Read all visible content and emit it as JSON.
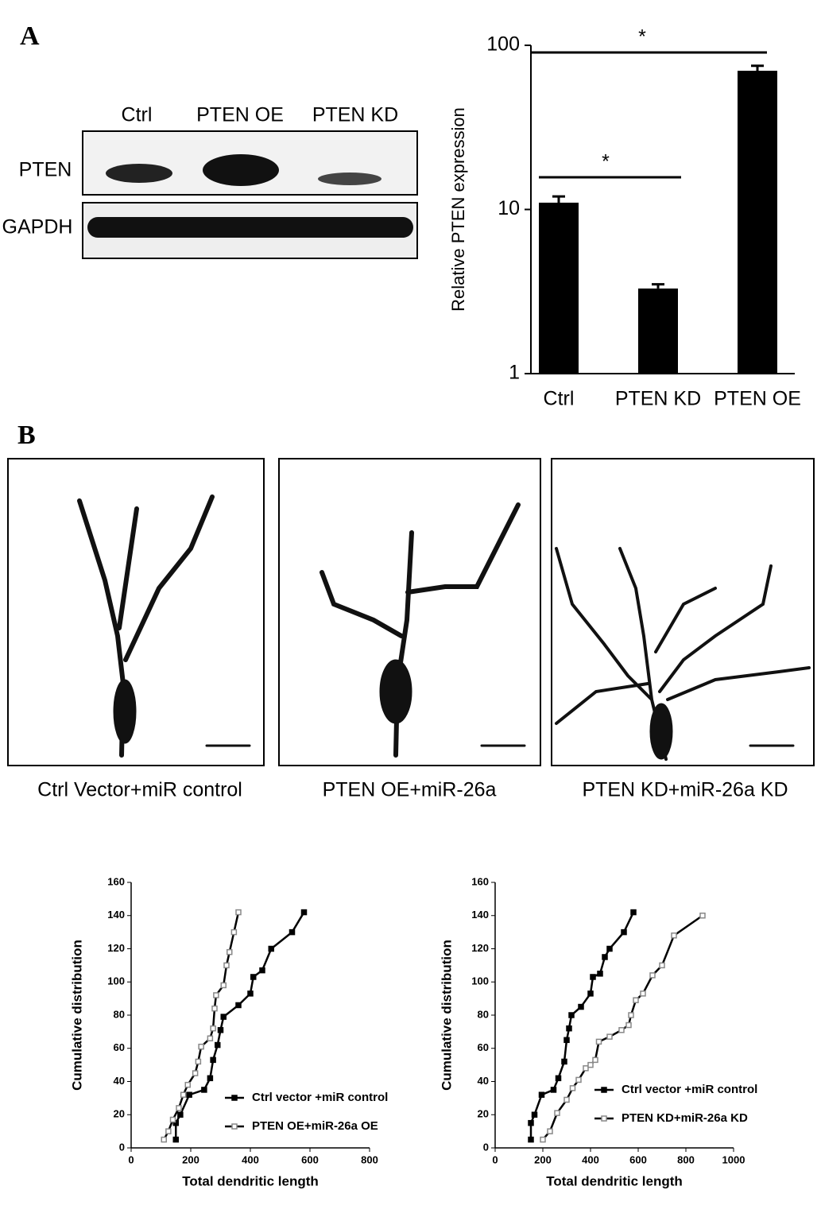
{
  "figure": {
    "panel_a": "A",
    "panel_b": "B",
    "blot": {
      "lanes": [
        "Ctrl",
        "PTEN OE",
        "PTEN KD"
      ],
      "rows": [
        "PTEN",
        "GAPDH"
      ]
    },
    "captions": [
      "Ctrl Vector+miR control",
      "PTEN OE+miR-26a",
      "PTEN KD+miR-26a KD"
    ]
  },
  "chart_data": [
    {
      "type": "bar",
      "y_label": "Relative PTEN expression",
      "categories": [
        "Ctrl",
        "PTEN KD",
        "PTEN OE"
      ],
      "values": [
        11,
        3.3,
        70
      ],
      "errors": [
        1,
        0.2,
        5
      ],
      "color": "#000000",
      "ylim": [
        1,
        100
      ],
      "yticks": [
        1,
        10,
        100
      ],
      "log_y": true,
      "annotations": [
        "*",
        "*"
      ]
    },
    {
      "type": "line",
      "x_label": "Total dendritic length",
      "y_label": "Cumulative distribution",
      "xlim": [
        0,
        800
      ],
      "xticks": [
        0,
        200,
        400,
        600,
        800
      ],
      "ylim": [
        0,
        160
      ],
      "yticks": [
        0,
        20,
        40,
        60,
        80,
        100,
        120,
        140,
        160
      ],
      "legend": "lower right",
      "series": [
        {
          "name": "Ctrl vector +miR control",
          "color": "#000000",
          "marker": "filled",
          "x": [
            150,
            150,
            165,
            195,
            245,
            265,
            275,
            290,
            300,
            310,
            360,
            400,
            410,
            440,
            470,
            540,
            580
          ],
          "values": [
            5,
            15,
            20,
            32,
            35,
            42,
            53,
            62,
            71,
            79,
            86,
            93,
            103,
            107,
            120,
            130,
            142
          ]
        },
        {
          "name": "PTEN OE+miR-26a OE",
          "color": "#888888",
          "marker": "open",
          "x": [
            110,
            125,
            140,
            160,
            175,
            190,
            215,
            225,
            235,
            265,
            275,
            280,
            285,
            310,
            320,
            330,
            345,
            360
          ],
          "values": [
            5,
            10,
            17,
            24,
            32,
            38,
            45,
            52,
            61,
            66,
            72,
            84,
            92,
            98,
            110,
            118,
            130,
            142
          ]
        }
      ]
    },
    {
      "type": "line",
      "x_label": "Total dendritic length",
      "y_label": "Cumulative distribution",
      "xlim": [
        0,
        1000
      ],
      "xticks": [
        0,
        200,
        400,
        600,
        800,
        1000
      ],
      "ylim": [
        0,
        160
      ],
      "yticks": [
        0,
        20,
        40,
        60,
        80,
        100,
        120,
        140,
        160
      ],
      "legend": "lower right",
      "series": [
        {
          "name": "Ctrl vector +miR control",
          "color": "#000000",
          "marker": "filled",
          "x": [
            150,
            150,
            165,
            195,
            245,
            265,
            290,
            300,
            310,
            320,
            360,
            400,
            410,
            440,
            460,
            480,
            540,
            580
          ],
          "values": [
            5,
            15,
            20,
            32,
            35,
            42,
            52,
            65,
            72,
            80,
            85,
            93,
            103,
            105,
            115,
            120,
            130,
            142
          ]
        },
        {
          "name": "PTEN KD+miR-26a KD",
          "color": "#888888",
          "marker": "open",
          "x": [
            200,
            230,
            260,
            300,
            325,
            350,
            380,
            400,
            420,
            435,
            480,
            530,
            560,
            570,
            590,
            620,
            660,
            700,
            750,
            870
          ],
          "values": [
            5,
            10,
            21,
            29,
            36,
            41,
            48,
            50,
            53,
            64,
            67,
            71,
            74,
            80,
            89,
            93,
            104,
            110,
            128,
            140
          ]
        }
      ]
    }
  ]
}
